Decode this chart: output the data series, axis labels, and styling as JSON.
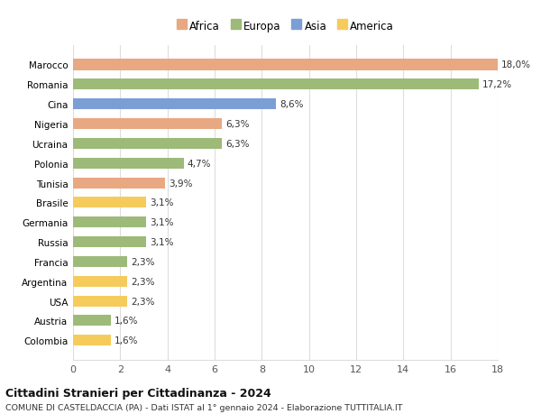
{
  "categories": [
    "Colombia",
    "Austria",
    "USA",
    "Argentina",
    "Francia",
    "Russia",
    "Germania",
    "Brasile",
    "Tunisia",
    "Polonia",
    "Ucraina",
    "Nigeria",
    "Cina",
    "Romania",
    "Marocco"
  ],
  "values": [
    1.6,
    1.6,
    2.3,
    2.3,
    2.3,
    3.1,
    3.1,
    3.1,
    3.9,
    4.7,
    6.3,
    6.3,
    8.6,
    17.2,
    18.0
  ],
  "labels": [
    "1,6%",
    "1,6%",
    "2,3%",
    "2,3%",
    "2,3%",
    "3,1%",
    "3,1%",
    "3,1%",
    "3,9%",
    "4,7%",
    "6,3%",
    "6,3%",
    "8,6%",
    "17,2%",
    "18,0%"
  ],
  "colors": [
    "#f5cb5c",
    "#9dba78",
    "#f5cb5c",
    "#f5cb5c",
    "#9dba78",
    "#9dba78",
    "#9dba78",
    "#f5cb5c",
    "#e8a882",
    "#9dba78",
    "#9dba78",
    "#e8a882",
    "#7b9ed4",
    "#9dba78",
    "#e8a882"
  ],
  "legend": [
    {
      "label": "Africa",
      "color": "#e8a882"
    },
    {
      "label": "Europa",
      "color": "#9dba78"
    },
    {
      "label": "Asia",
      "color": "#7b9ed4"
    },
    {
      "label": "America",
      "color": "#f5cb5c"
    }
  ],
  "xlim": [
    0,
    18
  ],
  "xticks": [
    0,
    2,
    4,
    6,
    8,
    10,
    12,
    14,
    16,
    18
  ],
  "title": "Cittadini Stranieri per Cittadinanza - 2024",
  "subtitle": "COMUNE DI CASTELDACCIA (PA) - Dati ISTAT al 1° gennaio 2024 - Elaborazione TUTTITALIA.IT",
  "background_color": "#ffffff",
  "grid_color": "#dddddd"
}
